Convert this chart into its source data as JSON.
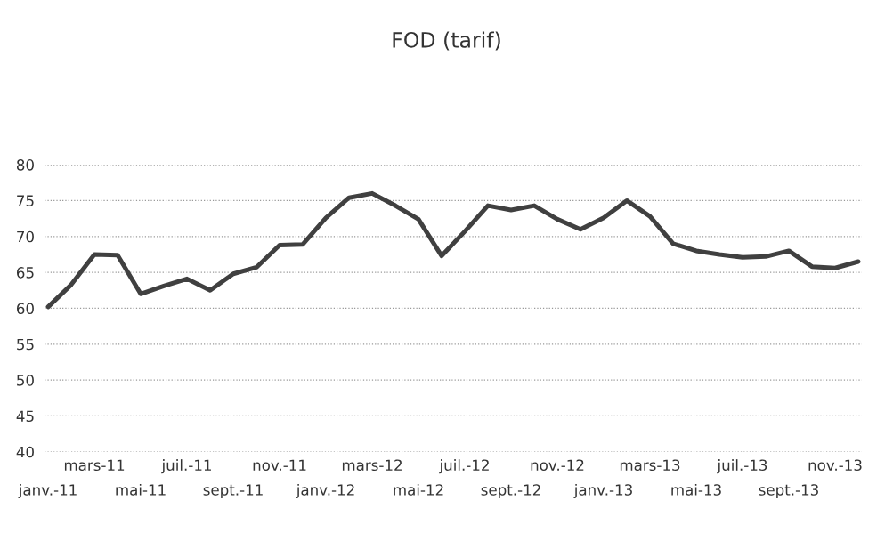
{
  "chart_data": {
    "type": "line",
    "title": "FOD (tarif)",
    "categories": [
      "janv.-11",
      null,
      "mars-11",
      null,
      "mai-11",
      null,
      "juil.-11",
      null,
      "sept.-11",
      null,
      "nov.-11",
      null,
      "janv.-12",
      null,
      "mars-12",
      null,
      "mai-12",
      null,
      "juil.-12",
      null,
      "sept.-12",
      null,
      "nov.-12",
      null,
      "janv.-13",
      null,
      "mars-13",
      null,
      "mai-13",
      null,
      "juil.-13",
      null,
      "sept.-13",
      null,
      "nov.-13",
      null
    ],
    "series": [
      {
        "color": "#404040",
        "values": [
          60.2,
          63.3,
          67.5,
          67.4,
          62.0,
          63.1,
          64.1,
          62.5,
          64.8,
          65.7,
          68.8,
          68.9,
          72.6,
          75.4,
          76.0,
          74.3,
          72.4,
          67.3,
          70.7,
          74.3,
          73.7,
          74.3,
          72.4,
          71.0,
          72.6,
          75.0,
          72.8,
          69.0,
          68.0,
          67.5,
          67.1,
          67.2,
          68.0,
          65.8,
          65.6,
          66.5
        ]
      }
    ],
    "ylim": [
      40,
      80
    ],
    "yticks": [
      40,
      45,
      50,
      55,
      60,
      65,
      70,
      75,
      80
    ],
    "grid": "y",
    "marker": "none",
    "line_style": "solid"
  }
}
